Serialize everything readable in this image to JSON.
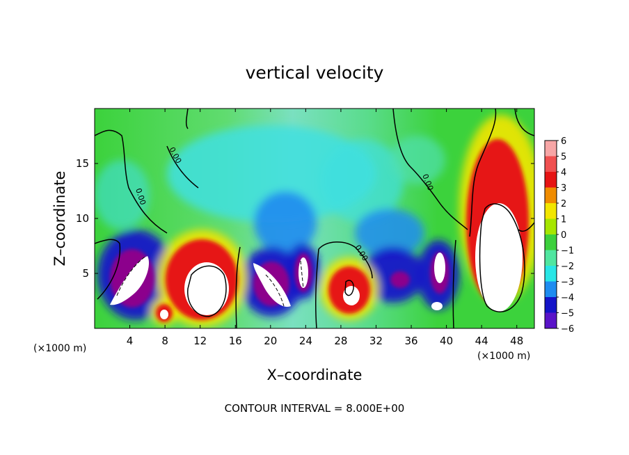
{
  "chart_data": {
    "type": "heatmap",
    "title": "vertical velocity",
    "xlabel": "X–coordinate",
    "ylabel": "Z–coordinate",
    "x_unit": "(×1000 m)",
    "y_unit": "(×1000 m)",
    "xlim": [
      0,
      50
    ],
    "ylim": [
      0,
      20
    ],
    "x_ticks": [
      4,
      8,
      12,
      16,
      20,
      24,
      28,
      32,
      36,
      40,
      44,
      48
    ],
    "x_tick_labels": [
      "4",
      "8",
      "12",
      "16",
      "20",
      "24",
      "28",
      "32",
      "36",
      "40",
      "44",
      "48"
    ],
    "y_ticks": [
      5,
      10,
      15
    ],
    "y_tick_labels": [
      "5",
      "10",
      "15"
    ],
    "colorbar": {
      "values": [
        6,
        5,
        4,
        3,
        2,
        1,
        0,
        -1,
        -2,
        -3,
        -4,
        -5,
        -6
      ],
      "labels": [
        "6",
        "5",
        "4",
        "3",
        "2",
        "1",
        "0",
        "−1",
        "−2",
        "−3",
        "−4",
        "−5",
        "−6"
      ],
      "colors": [
        "#f7a6a6",
        "#f05050",
        "#e61414",
        "#f08c00",
        "#f2e600",
        "#a6e600",
        "#3cd03c",
        "#50e6a0",
        "#28e6e6",
        "#1e8cf0",
        "#1414c8",
        "#5a14c8",
        "#8c008c"
      ]
    },
    "contour_label": "0.00",
    "annotation": "CONTOUR INTERVAL = 8.000E+00",
    "features": [
      {
        "kind": "updraft",
        "x": 45.5,
        "z": 6.5,
        "max": 6
      },
      {
        "kind": "updraft",
        "x": 12.5,
        "z": 5.0,
        "max": 6
      },
      {
        "kind": "updraft",
        "x": 29.5,
        "z": 3.5,
        "max": 6
      },
      {
        "kind": "updraft",
        "x": 7.8,
        "z": 1.5,
        "max": 6
      },
      {
        "kind": "downdraft",
        "x": 4.5,
        "z": 4.8,
        "min": -6
      },
      {
        "kind": "downdraft",
        "x": 20.5,
        "z": 4.0,
        "min": -6
      },
      {
        "kind": "downdraft",
        "x": 23.8,
        "z": 5.5,
        "min": -6
      },
      {
        "kind": "downdraft",
        "x": 34.5,
        "z": 5.0,
        "min": -6
      },
      {
        "kind": "downdraft",
        "x": 38.6,
        "z": 5.5,
        "min": -6
      }
    ]
  }
}
